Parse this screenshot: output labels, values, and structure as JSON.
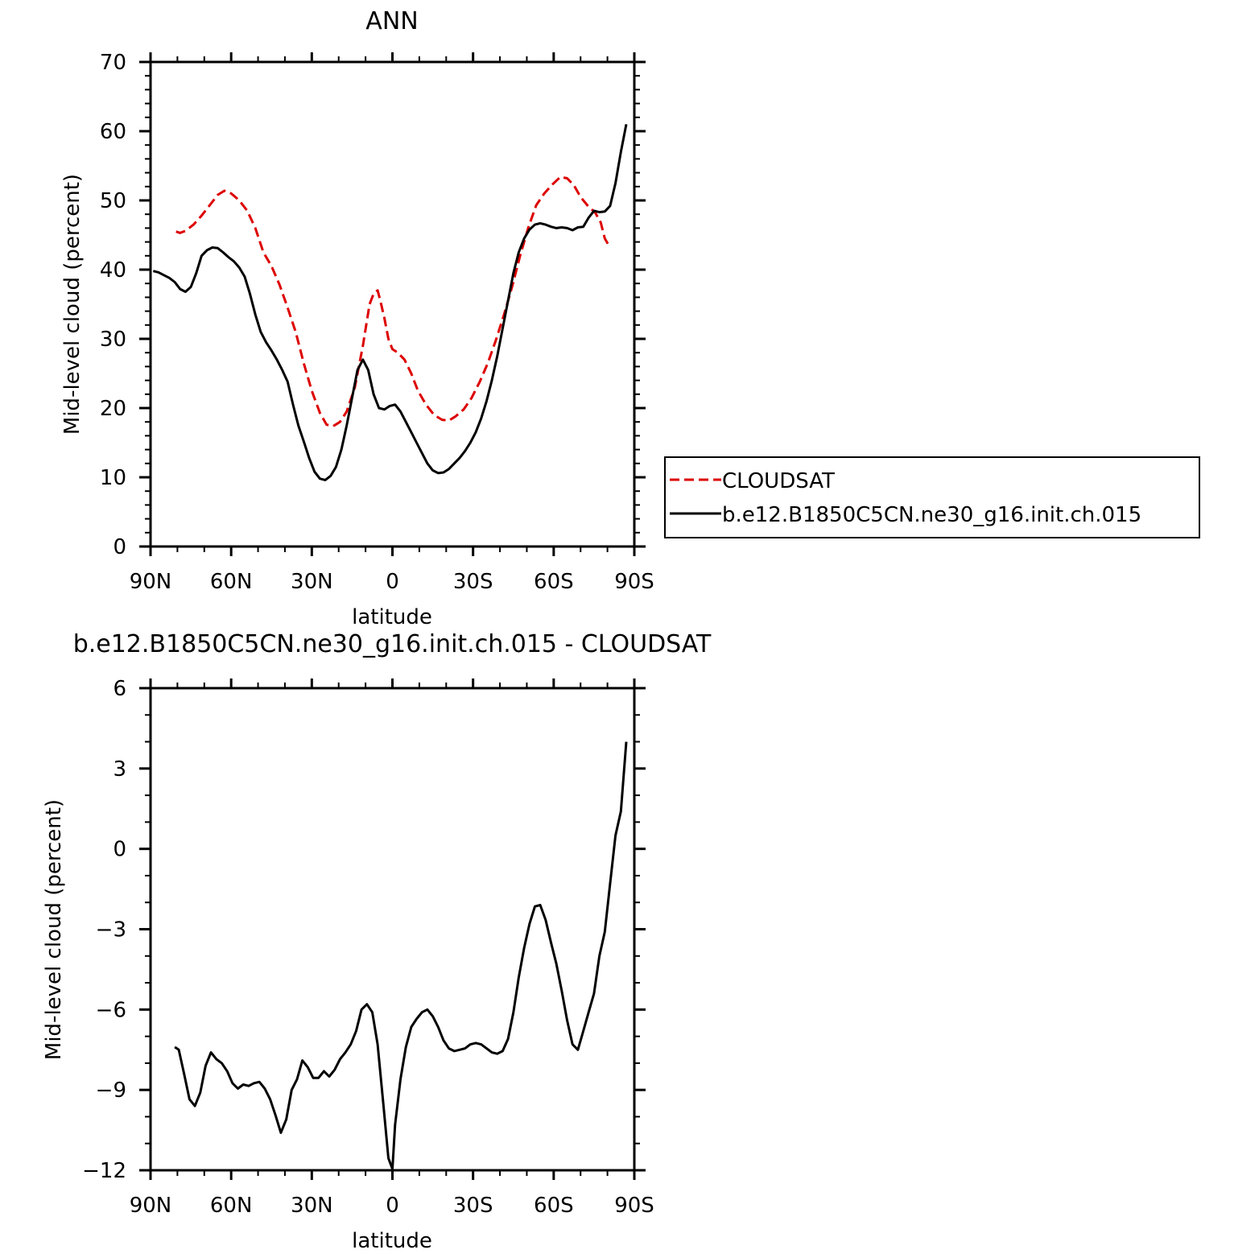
{
  "chart_data": [
    {
      "type": "line",
      "title": "ANN",
      "xlabel": "latitude",
      "ylabel": "Mid-level cloud (percent)",
      "xlim": [
        90,
        -90
      ],
      "ylim": [
        0,
        70
      ],
      "x_ticks": [
        {
          "value": 90,
          "label": "90N"
        },
        {
          "value": 60,
          "label": "60N"
        },
        {
          "value": 30,
          "label": "30N"
        },
        {
          "value": 0,
          "label": "0"
        },
        {
          "value": -30,
          "label": "30S"
        },
        {
          "value": -60,
          "label": "60S"
        },
        {
          "value": -90,
          "label": "90S"
        }
      ],
      "y_ticks": [
        {
          "value": 0,
          "label": "0"
        },
        {
          "value": 10,
          "label": "10"
        },
        {
          "value": 20,
          "label": "20"
        },
        {
          "value": 30,
          "label": "30"
        },
        {
          "value": 40,
          "label": "40"
        },
        {
          "value": 50,
          "label": "50"
        },
        {
          "value": 60,
          "label": "60"
        },
        {
          "value": 70,
          "label": "70"
        }
      ],
      "legend": {
        "placement": "right",
        "entries": [
          "CLOUDSAT",
          "b.e12.B1850C5CN.ne30_g16.init.ch.015"
        ]
      },
      "series": [
        {
          "name": "CLOUDSAT",
          "color": "#dd0000",
          "dash": true,
          "points": [
            [
              80.5,
              45.5
            ],
            [
              79,
              45.3
            ],
            [
              77,
              45.6
            ],
            [
              74,
              46.5
            ],
            [
              71,
              47.8
            ],
            [
              68,
              49.3
            ],
            [
              65,
              50.8
            ],
            [
              62.5,
              51.4
            ],
            [
              60,
              51
            ],
            [
              57,
              50
            ],
            [
              54,
              48.5
            ],
            [
              51,
              46
            ],
            [
              48,
              42.5
            ],
            [
              45,
              40.5
            ],
            [
              42,
              37.8
            ],
            [
              39,
              34.5
            ],
            [
              36,
              31
            ],
            [
              33,
              26.5
            ],
            [
              30,
              22.5
            ],
            [
              27,
              19.3
            ],
            [
              24.5,
              17.6
            ],
            [
              22,
              17.4
            ],
            [
              19.5,
              18
            ],
            [
              17,
              19.5
            ],
            [
              14,
              23
            ],
            [
              11,
              29
            ],
            [
              8.5,
              35
            ],
            [
              7,
              36.5
            ],
            [
              5.5,
              37
            ],
            [
              4.5,
              35.5
            ],
            [
              3,
              33
            ],
            [
              1.5,
              30
            ],
            [
              0,
              28.5
            ],
            [
              -2,
              28
            ],
            [
              -4.5,
              27
            ],
            [
              -7,
              25
            ],
            [
              -9.5,
              22.5
            ],
            [
              -12.5,
              20.5
            ],
            [
              -15.5,
              19
            ],
            [
              -18.5,
              18.3
            ],
            [
              -21,
              18.2
            ],
            [
              -23.5,
              18.8
            ],
            [
              -26.5,
              19.8
            ],
            [
              -29.5,
              21.5
            ],
            [
              -32.5,
              23.8
            ],
            [
              -35.5,
              26.5
            ],
            [
              -38.5,
              29.8
            ],
            [
              -41.5,
              33.5
            ],
            [
              -44.5,
              37.5
            ],
            [
              -47.5,
              42
            ],
            [
              -50.5,
              46
            ],
            [
              -53.5,
              49.3
            ],
            [
              -56.5,
              51
            ],
            [
              -59.5,
              52.3
            ],
            [
              -62.5,
              53.4
            ],
            [
              -65,
              53.2
            ],
            [
              -67.5,
              52.2
            ],
            [
              -70,
              50.5
            ],
            [
              -72.5,
              49.3
            ],
            [
              -75.5,
              48.2
            ],
            [
              -77.5,
              46.8
            ],
            [
              -79,
              44.5
            ],
            [
              -80.5,
              43.5
            ]
          ]
        },
        {
          "name": "b.e12.B1850C5CN.ne30_g16.init.ch.015",
          "color": "#000000",
          "dash": false,
          "points": [
            [
              89,
              39.8
            ],
            [
              87,
              39.6
            ],
            [
              85,
              39.2
            ],
            [
              83,
              38.8
            ],
            [
              81,
              38.2
            ],
            [
              79,
              37.2
            ],
            [
              77,
              36.8
            ],
            [
              75,
              37.5
            ],
            [
              73,
              39.5
            ],
            [
              71,
              42
            ],
            [
              69,
              42.8
            ],
            [
              67,
              43.2
            ],
            [
              65,
              43.1
            ],
            [
              63,
              42.5
            ],
            [
              61,
              41.8
            ],
            [
              59,
              41.2
            ],
            [
              57,
              40.3
            ],
            [
              55,
              39
            ],
            [
              53,
              36.5
            ],
            [
              51,
              33.5
            ],
            [
              49,
              31
            ],
            [
              47,
              29.5
            ],
            [
              45,
              28.3
            ],
            [
              43,
              27
            ],
            [
              41,
              25.5
            ],
            [
              39,
              23.8
            ],
            [
              37,
              20.5
            ],
            [
              35,
              17.5
            ],
            [
              33,
              15.2
            ],
            [
              31,
              12.8
            ],
            [
              29,
              10.8
            ],
            [
              27,
              9.8
            ],
            [
              25,
              9.6
            ],
            [
              23,
              10.2
            ],
            [
              21,
              11.5
            ],
            [
              19,
              14
            ],
            [
              17,
              17.5
            ],
            [
              15,
              21.5
            ],
            [
              13,
              25.5
            ],
            [
              11,
              27
            ],
            [
              9,
              25.5
            ],
            [
              7,
              22
            ],
            [
              5,
              20
            ],
            [
              3,
              19.8
            ],
            [
              1,
              20.3
            ],
            [
              -1,
              20.5
            ],
            [
              -3,
              19.5
            ],
            [
              -5,
              18
            ],
            [
              -7,
              16.5
            ],
            [
              -9,
              15
            ],
            [
              -11,
              13.5
            ],
            [
              -13,
              12
            ],
            [
              -15,
              11
            ],
            [
              -17,
              10.6
            ],
            [
              -19,
              10.7
            ],
            [
              -21,
              11.2
            ],
            [
              -23,
              12
            ],
            [
              -25,
              12.8
            ],
            [
              -27,
              13.8
            ],
            [
              -29,
              15
            ],
            [
              -31,
              16.5
            ],
            [
              -33,
              18.5
            ],
            [
              -35,
              21
            ],
            [
              -37,
              24
            ],
            [
              -39,
              27.5
            ],
            [
              -41,
              31.5
            ],
            [
              -43,
              35.5
            ],
            [
              -45,
              39.5
            ],
            [
              -47,
              42.5
            ],
            [
              -49,
              44.5
            ],
            [
              -51,
              45.8
            ],
            [
              -53,
              46.5
            ],
            [
              -55,
              46.7
            ],
            [
              -57,
              46.5
            ],
            [
              -59,
              46.2
            ],
            [
              -61,
              46
            ],
            [
              -63,
              46.1
            ],
            [
              -65,
              46
            ],
            [
              -67,
              45.7
            ],
            [
              -69,
              46.1
            ],
            [
              -71,
              46.2
            ],
            [
              -73,
              47.5
            ],
            [
              -75,
              48.5
            ],
            [
              -77,
              48.3
            ],
            [
              -79,
              48.4
            ],
            [
              -81,
              49.2
            ],
            [
              -83,
              52.5
            ],
            [
              -85,
              57
            ],
            [
              -87,
              61
            ]
          ]
        }
      ]
    },
    {
      "type": "line",
      "title": "b.e12.B1850C5CN.ne30_g16.init.ch.015 - CLOUDSAT",
      "xlabel": "latitude",
      "ylabel": "Mid-level cloud (percent)",
      "xlim": [
        90,
        -90
      ],
      "ylim": [
        -12,
        6
      ],
      "x_ticks": [
        {
          "value": 90,
          "label": "90N"
        },
        {
          "value": 60,
          "label": "60N"
        },
        {
          "value": 30,
          "label": "30N"
        },
        {
          "value": 0,
          "label": "0"
        },
        {
          "value": -30,
          "label": "30S"
        },
        {
          "value": -60,
          "label": "60S"
        },
        {
          "value": -90,
          "label": "90S"
        }
      ],
      "y_ticks": [
        {
          "value": -12,
          "label": "−12"
        },
        {
          "value": -9,
          "label": "−9"
        },
        {
          "value": -6,
          "label": "−6"
        },
        {
          "value": -3,
          "label": "−3"
        },
        {
          "value": 0,
          "label": "0"
        },
        {
          "value": 3,
          "label": "3"
        },
        {
          "value": 6,
          "label": "6"
        }
      ],
      "series": [
        {
          "color": "#000000",
          "dash": false,
          "points": [
            [
              81,
              -7.4
            ],
            [
              79.5,
              -7.5
            ],
            [
              77.5,
              -8.4
            ],
            [
              75.5,
              -9.35
            ],
            [
              73.5,
              -9.6
            ],
            [
              71.5,
              -9.1
            ],
            [
              69.5,
              -8.1
            ],
            [
              67.5,
              -7.6
            ],
            [
              65.5,
              -7.85
            ],
            [
              63.5,
              -8
            ],
            [
              61.5,
              -8.3
            ],
            [
              59.5,
              -8.75
            ],
            [
              57.5,
              -8.95
            ],
            [
              55.5,
              -8.8
            ],
            [
              53.5,
              -8.85
            ],
            [
              51.5,
              -8.75
            ],
            [
              49.5,
              -8.7
            ],
            [
              47.5,
              -8.95
            ],
            [
              45.5,
              -9.35
            ],
            [
              43.5,
              -9.95
            ],
            [
              41.5,
              -10.6
            ],
            [
              39.5,
              -10.1
            ],
            [
              37.5,
              -9
            ],
            [
              35.5,
              -8.6
            ],
            [
              33.5,
              -7.9
            ],
            [
              31.5,
              -8.15
            ],
            [
              29.5,
              -8.55
            ],
            [
              27.5,
              -8.55
            ],
            [
              25.5,
              -8.3
            ],
            [
              23.5,
              -8.5
            ],
            [
              21.5,
              -8.25
            ],
            [
              19.5,
              -7.85
            ],
            [
              17.5,
              -7.6
            ],
            [
              15.5,
              -7.3
            ],
            [
              13.5,
              -6.8
            ],
            [
              11.5,
              -6
            ],
            [
              9.5,
              -5.8
            ],
            [
              7.5,
              -6.1
            ],
            [
              5.5,
              -7.3
            ],
            [
              3.5,
              -9.4
            ],
            [
              1.5,
              -11.55
            ],
            [
              0,
              -11.95
            ],
            [
              -1,
              -10.3
            ],
            [
              -3,
              -8.6
            ],
            [
              -5,
              -7.4
            ],
            [
              -7,
              -6.65
            ],
            [
              -9,
              -6.35
            ],
            [
              -11,
              -6.1
            ],
            [
              -13,
              -6
            ],
            [
              -15,
              -6.25
            ],
            [
              -17,
              -6.65
            ],
            [
              -19,
              -7.15
            ],
            [
              -21,
              -7.45
            ],
            [
              -23,
              -7.55
            ],
            [
              -25,
              -7.5
            ],
            [
              -27,
              -7.45
            ],
            [
              -29,
              -7.3
            ],
            [
              -31,
              -7.25
            ],
            [
              -33,
              -7.3
            ],
            [
              -35,
              -7.45
            ],
            [
              -37,
              -7.6
            ],
            [
              -39,
              -7.65
            ],
            [
              -41,
              -7.55
            ],
            [
              -43,
              -7.1
            ],
            [
              -45,
              -6.1
            ],
            [
              -47,
              -4.8
            ],
            [
              -49,
              -3.7
            ],
            [
              -51,
              -2.8
            ],
            [
              -53,
              -2.15
            ],
            [
              -55,
              -2.1
            ],
            [
              -57,
              -2.65
            ],
            [
              -59,
              -3.5
            ],
            [
              -61,
              -4.3
            ],
            [
              -63,
              -5.3
            ],
            [
              -65,
              -6.4
            ],
            [
              -67,
              -7.3
            ],
            [
              -69,
              -7.5
            ],
            [
              -71,
              -6.8
            ],
            [
              -73,
              -6.1
            ],
            [
              -75,
              -5.4
            ],
            [
              -77,
              -4
            ],
            [
              -79,
              -3.1
            ],
            [
              -81,
              -1.3
            ],
            [
              -83,
              0.5
            ],
            [
              -85,
              1.4
            ],
            [
              -87,
              4
            ]
          ]
        }
      ]
    }
  ]
}
